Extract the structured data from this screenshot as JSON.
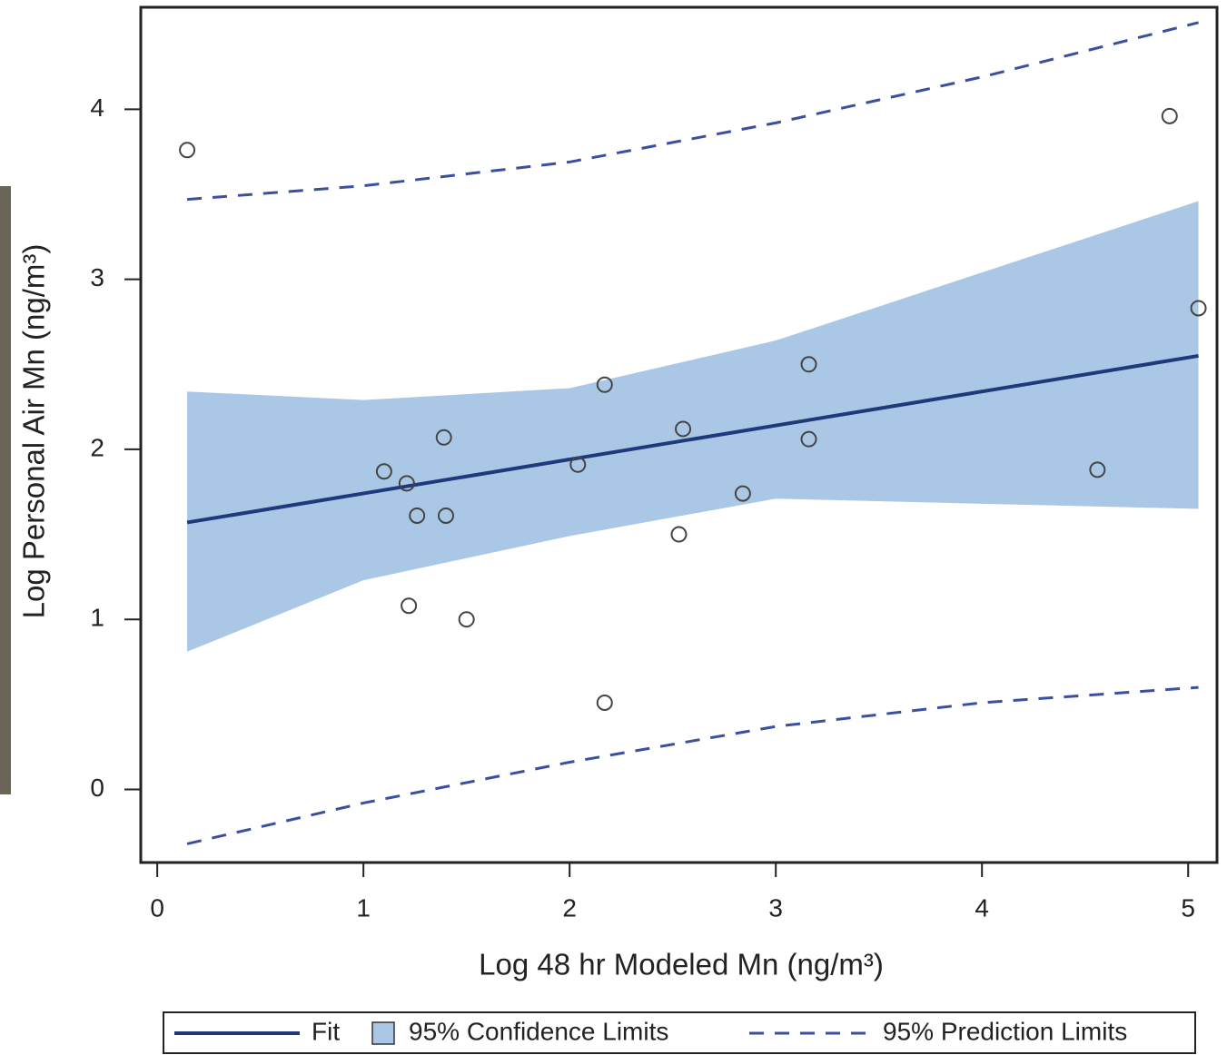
{
  "chart_data": {
    "type": "scatter",
    "x_label": "Log 48 hr Modeled Mn (ng/m³)",
    "y_label": "Log Personal Air Mn (ng/m³)",
    "xlim": [
      -0.08,
      5.14
    ],
    "ylim": [
      -0.43,
      4.6
    ],
    "xticks": [
      0,
      1,
      2,
      3,
      4,
      5
    ],
    "yticks": [
      0,
      1,
      2,
      3,
      4
    ],
    "points": {
      "color": "#444444",
      "x": [
        0.145,
        1.1,
        1.21,
        1.26,
        1.39,
        1.4,
        1.22,
        1.5,
        2.04,
        2.17,
        2.17,
        2.53,
        2.55,
        2.84,
        3.16,
        3.16,
        4.56,
        4.91,
        5.05
      ],
      "y": [
        3.76,
        1.87,
        1.8,
        1.61,
        2.07,
        1.61,
        1.08,
        1.0,
        1.91,
        2.38,
        0.51,
        1.5,
        2.12,
        1.74,
        2.5,
        2.06,
        1.88,
        3.96,
        2.83
      ]
    },
    "fit": {
      "name": "Fit",
      "color": "#1f3a7a",
      "x": [
        0.145,
        5.05
      ],
      "values": [
        1.57,
        2.55
      ]
    },
    "confidence": {
      "name": "95% Confidence Limits",
      "color": "#aac8e6",
      "x": [
        0.145,
        1,
        2,
        3,
        4,
        5.05
      ],
      "upper": [
        2.34,
        2.29,
        2.36,
        2.64,
        3.04,
        3.46
      ],
      "lower": [
        0.81,
        1.23,
        1.49,
        1.71,
        1.68,
        1.65
      ]
    },
    "prediction": {
      "name": "95% Prediction Limits",
      "color": "#3b4fa0",
      "x": [
        0.145,
        1,
        2,
        3,
        4,
        5.05
      ],
      "upper": [
        3.47,
        3.55,
        3.69,
        3.92,
        4.19,
        4.51
      ],
      "lower": [
        -0.32,
        -0.08,
        0.16,
        0.37,
        0.51,
        0.6
      ]
    }
  }
}
